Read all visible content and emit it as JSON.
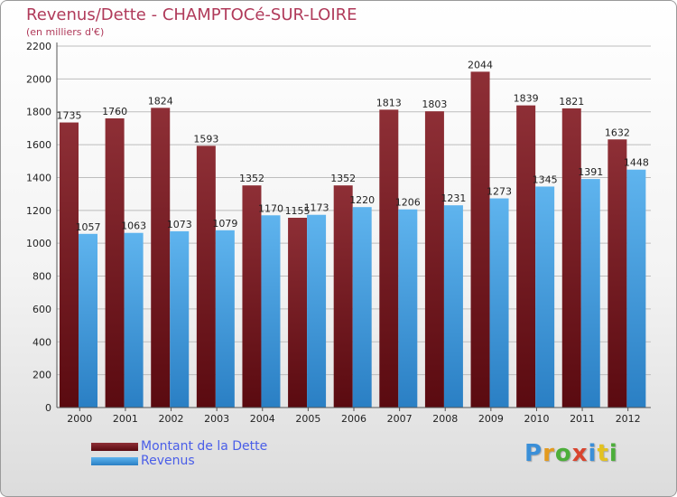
{
  "chart_data": {
    "type": "bar",
    "title": "Revenus/Dette - CHAMPTOCé-SUR-LOIRE",
    "subtitle": "(en milliers d'€)",
    "categories": [
      "2000",
      "2001",
      "2002",
      "2003",
      "2004",
      "2005",
      "2006",
      "2007",
      "2008",
      "2009",
      "2010",
      "2011",
      "2012"
    ],
    "series": [
      {
        "name": "Montant de la Dette",
        "color": "#7a1a22",
        "values": [
          1735,
          1760,
          1824,
          1593,
          1352,
          1155,
          1352,
          1813,
          1803,
          2044,
          1839,
          1821,
          1632
        ]
      },
      {
        "name": "Revenus",
        "color": "#4aa3e6",
        "values": [
          1057,
          1063,
          1073,
          1079,
          1170,
          1173,
          1220,
          1206,
          1231,
          1273,
          1345,
          1391,
          1448
        ]
      }
    ],
    "ylim": [
      0,
      2200
    ],
    "yticks": [
      0,
      200,
      400,
      600,
      800,
      1000,
      1200,
      1400,
      1600,
      1800,
      2000,
      2200
    ],
    "grid": true,
    "legend_position": "bottom-left"
  },
  "logo": {
    "text": "Proxiti",
    "letters": [
      {
        "char": "P",
        "color": "#3a8fd8"
      },
      {
        "char": "r",
        "color": "#e39a1f"
      },
      {
        "char": "o",
        "color": "#4cae3a"
      },
      {
        "char": "x",
        "color": "#d9442e"
      },
      {
        "char": "i",
        "color": "#3a8fd8"
      },
      {
        "char": "t",
        "color": "#e3c21f"
      },
      {
        "char": "i",
        "color": "#4cae3a"
      }
    ]
  }
}
